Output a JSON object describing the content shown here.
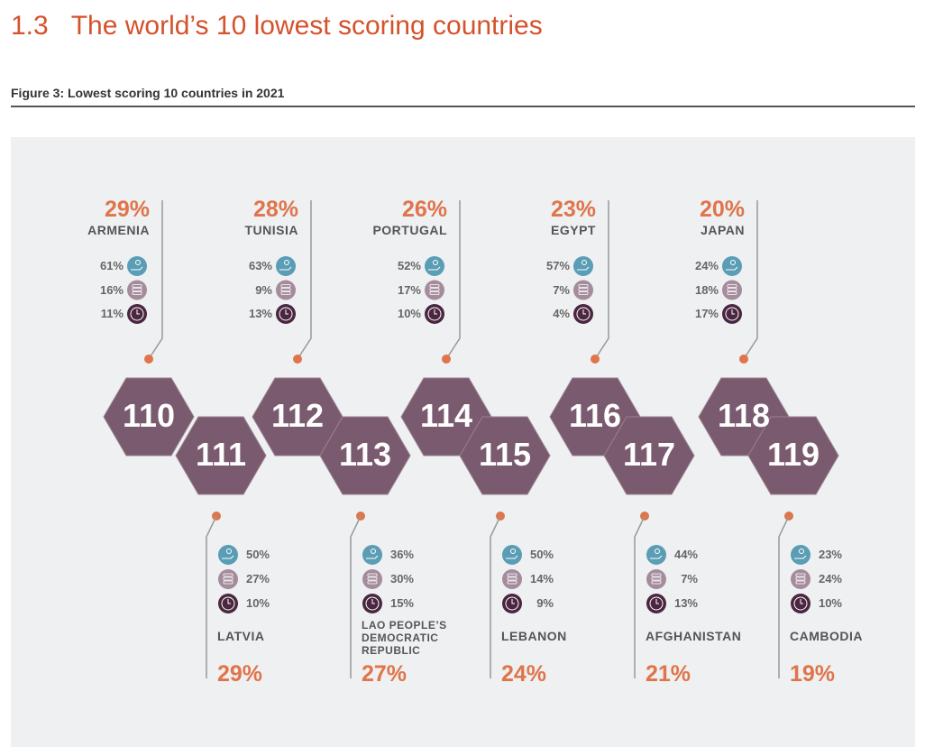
{
  "header": {
    "title": "1.3   The world’s 10 lowest scoring countries",
    "caption": "Figure 3: Lowest scoring 10 countries in 2021"
  },
  "colors": {
    "accent": "#e0744a",
    "hex": "#7a5a6e",
    "icon1": "#5a9db5",
    "icon2": "#a58c9c",
    "icon3": "#4a2640"
  },
  "icons": [
    "person-hand-icon",
    "coins-icon",
    "clock-icon"
  ],
  "countries": [
    {
      "rank": "110",
      "name": "ARMENIA",
      "score": "29%",
      "stats": [
        "61%",
        "16%",
        "11%"
      ]
    },
    {
      "rank": "111",
      "name": "LATVIA",
      "score": "29%",
      "stats": [
        "50%",
        "27%",
        "10%"
      ]
    },
    {
      "rank": "112",
      "name": "TUNISIA",
      "score": "28%",
      "stats": [
        "63%",
        "9%",
        "13%"
      ]
    },
    {
      "rank": "113",
      "name": "LAO PEOPLE’S DEMOCRATIC REPUBLIC",
      "score": "27%",
      "stats": [
        "36%",
        "30%",
        "15%"
      ]
    },
    {
      "rank": "114",
      "name": "PORTUGAL",
      "score": "26%",
      "stats": [
        "52%",
        "17%",
        "10%"
      ]
    },
    {
      "rank": "115",
      "name": "LEBANON",
      "score": "24%",
      "stats": [
        "50%",
        "14%",
        "9%"
      ]
    },
    {
      "rank": "116",
      "name": "EGYPT",
      "score": "23%",
      "stats": [
        "57%",
        "7%",
        "4%"
      ]
    },
    {
      "rank": "117",
      "name": "AFGHANISTAN",
      "score": "21%",
      "stats": [
        "44%",
        "7%",
        "13%"
      ]
    },
    {
      "rank": "118",
      "name": "JAPAN",
      "score": "20%",
      "stats": [
        "24%",
        "18%",
        "17%"
      ]
    },
    {
      "rank": "119",
      "name": "CAMBODIA",
      "score": "19%",
      "stats": [
        "23%",
        "24%",
        "10%"
      ]
    }
  ]
}
